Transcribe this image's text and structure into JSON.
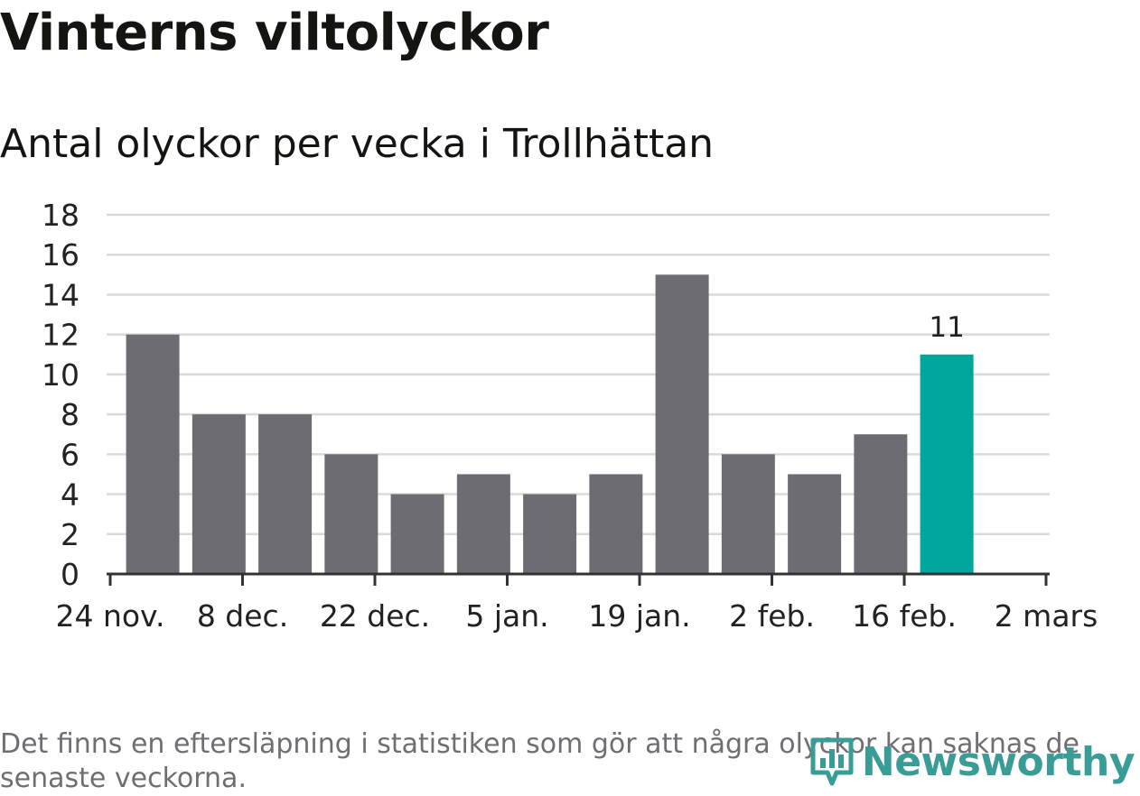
{
  "title": "Vinterns viltolyckor",
  "subtitle": "Antal olyckor per vecka i Trollhättan",
  "footnote": "Det finns en eftersläpning i statistiken som gör att några olyckor kan saknas de senaste veckorna.",
  "brand": {
    "name": "Newsworthy",
    "logo_icon": "bar-chart-pin-icon",
    "color": "#3a9c96"
  },
  "colors": {
    "bar": "#6d6c72",
    "highlight": "#00a59b",
    "grid": "#d9d9d9",
    "axis": "#333333"
  },
  "chart_data": {
    "type": "bar",
    "title": "Vinterns viltolyckor",
    "subtitle": "Antal olyckor per vecka i Trollhättan",
    "xlabel": "",
    "ylabel": "",
    "ylim": [
      0,
      18
    ],
    "yticks": [
      0,
      2,
      4,
      6,
      8,
      10,
      12,
      14,
      16,
      18
    ],
    "grid": true,
    "xlim": [
      "2019-11-24",
      "2020-03-02"
    ],
    "xtick_labels": [
      "24 nov.",
      "8 dec.",
      "22 dec.",
      "5 jan.",
      "19 jan.",
      "2 feb.",
      "16 feb.",
      "2 mars"
    ],
    "xtick_dates": [
      "2019-11-24",
      "2019-12-08",
      "2019-12-22",
      "2020-01-05",
      "2020-01-19",
      "2020-02-02",
      "2020-02-16",
      "2020-03-02"
    ],
    "weeks": [
      "2019-11-25",
      "2019-12-02",
      "2019-12-09",
      "2019-12-16",
      "2019-12-23",
      "2019-12-30",
      "2020-01-06",
      "2020-01-13",
      "2020-01-20",
      "2020-01-27",
      "2020-02-03",
      "2020-02-10",
      "2020-02-17"
    ],
    "values": [
      12,
      8,
      8,
      6,
      4,
      5,
      4,
      5,
      15,
      6,
      5,
      7,
      11
    ],
    "highlight_index": 12,
    "data_labels": [
      {
        "index": 12,
        "text": "11"
      }
    ]
  }
}
